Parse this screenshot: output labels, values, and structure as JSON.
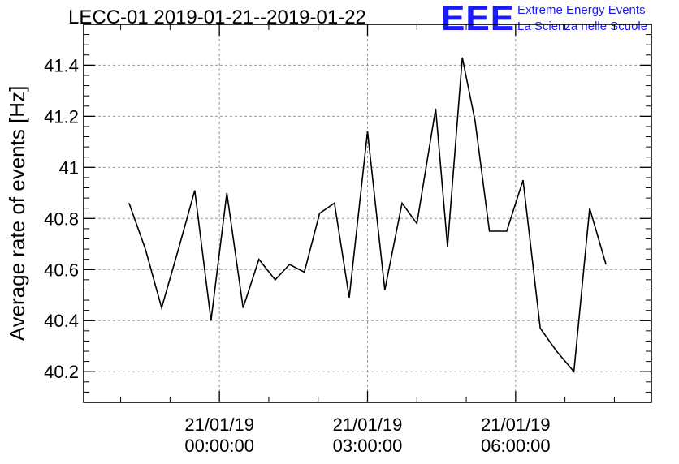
{
  "header": {
    "title": "LECC-01 2019-01-21--2019-01-22",
    "logo": "EEE",
    "logo_line1": "Extreme Energy Events",
    "logo_line2": "La Scienza nelle Scuole"
  },
  "colors": {
    "line": "#000000",
    "grid": "#999999",
    "brand": "#1a1aff"
  },
  "chart_data": {
    "type": "line",
    "title": "LECC-01 2019-01-21--2019-01-22",
    "xlabel": "",
    "ylabel": "Average rate of events [Hz]",
    "x_unit": "hours relative to 21/01/19 00:00:00",
    "xlim": [
      -2.75,
      8.75
    ],
    "ylim": [
      40.08,
      41.56
    ],
    "x_ticks": [
      {
        "x": 0,
        "label": [
          "21/01/19",
          "00:00:00"
        ]
      },
      {
        "x": 3,
        "label": [
          "21/01/19",
          "03:00:00"
        ]
      },
      {
        "x": 6,
        "label": [
          "21/01/19",
          "06:00:00"
        ]
      }
    ],
    "x_minor_ticks": [
      -2,
      -1,
      1,
      2,
      4,
      5,
      7,
      8
    ],
    "y_ticks": [
      40.2,
      40.4,
      40.6,
      40.8,
      41.0,
      41.2,
      41.4
    ],
    "y_tick_labels": [
      "40.2",
      "40.4",
      "40.6",
      "40.8",
      "41",
      "41.2",
      "41.4"
    ],
    "grid": true,
    "series": [
      {
        "x": [
          -1.83,
          -1.5,
          -1.17,
          -0.83,
          -0.5,
          -0.17,
          0.15,
          0.48,
          0.8,
          1.13,
          1.42,
          1.72,
          2.03,
          2.33,
          2.63,
          3.0,
          3.35,
          3.7,
          4.0,
          4.38,
          4.62,
          4.92,
          5.18,
          5.47,
          5.82,
          6.15,
          6.5,
          6.83,
          7.18,
          7.5,
          7.83
        ],
        "y": [
          40.86,
          40.68,
          40.45,
          40.68,
          40.91,
          40.4,
          40.9,
          40.45,
          40.64,
          40.56,
          40.62,
          40.59,
          40.82,
          40.86,
          40.49,
          41.14,
          40.52,
          40.86,
          40.78,
          41.23,
          40.69,
          41.43,
          41.18,
          40.75,
          40.75,
          40.95,
          40.37,
          40.28,
          40.2,
          40.84,
          40.62
        ]
      }
    ]
  }
}
